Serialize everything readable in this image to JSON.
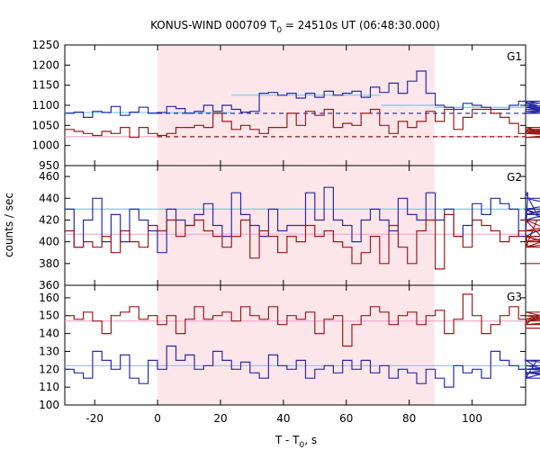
{
  "chart_data": {
    "type": "line",
    "title_prefix": "KONUS-WIND 000709 T",
    "title_sub": "0",
    "title_suffix": " = 24510s UT (06:48:30.000)",
    "xlabel_prefix": "T - T",
    "xlabel_sub": "0",
    "xlabel_suffix": ", s",
    "ylabel": "counts / sec",
    "xlim": [
      -29.5,
      117
    ],
    "x_ticks": [
      -20,
      0,
      20,
      40,
      60,
      80,
      100
    ],
    "highlight_interval": [
      0,
      88
    ],
    "colors": {
      "blue": "#2a2aa8",
      "red": "#9a1a1a",
      "light_blue": "#6ed0f0",
      "pink": "#f0a6cc",
      "dashed_blue": "#1f1f9a",
      "dashed_red": "#8a1010",
      "highlight": "#fde6ea"
    },
    "bin_width": 2.944,
    "x_start": -29.5,
    "panels": [
      {
        "label": "G1",
        "ylim": [
          950,
          1250
        ],
        "y_ticks": [
          950,
          1000,
          1050,
          1100,
          1150,
          1200,
          1250
        ],
        "series": [
          {
            "color_key": "blue",
            "values": [
              1080,
              1083,
              1070,
              1085,
              1082,
              1097,
              1075,
              1083,
              1095,
              1080,
              1082,
              1097,
              1092,
              1080,
              1085,
              1100,
              1085,
              1100,
              1090,
              1083,
              1085,
              1130,
              1132,
              1125,
              1130,
              1118,
              1130,
              1120,
              1135,
              1125,
              1130,
              1135,
              1120,
              1145,
              1132,
              1155,
              1130,
              1160,
              1185,
              1130,
              1100,
              1095,
              1090,
              1105,
              1100,
              1095,
              1090,
              1090,
              1100,
              1110,
              1105,
              1100,
              1090,
              1095,
              1085,
              1095,
              1110,
              1085,
              1080,
              1105
            ]
          },
          {
            "color_key": "red",
            "values": [
              1040,
              1035,
              1030,
              1025,
              1035,
              1030,
              1045,
              1020,
              1045,
              1030,
              1025,
              1030,
              1045,
              1045,
              1050,
              1045,
              1080,
              1060,
              1040,
              1050,
              1040,
              1030,
              1045,
              1045,
              1080,
              1050,
              1085,
              1075,
              1090,
              1045,
              1055,
              1050,
              1080,
              1090,
              1050,
              1030,
              1060,
              1045,
              1060,
              1085,
              1060,
              1090,
              1040,
              1070,
              1090,
              1090,
              1080,
              1070,
              1055,
              1030,
              1040,
              1035,
              1030,
              1045,
              1020,
              1030,
              1040,
              1030,
              1020,
              1035
            ]
          }
        ],
        "levels": [
          {
            "color_key": "light_blue",
            "style": "solid",
            "value": 1082,
            "from": -29.5,
            "to": 23.5
          },
          {
            "color_key": "light_blue",
            "style": "solid",
            "value": 1125,
            "from": 23.5,
            "to": 71
          },
          {
            "color_key": "light_blue",
            "style": "solid",
            "value": 1100,
            "from": 71,
            "to": 88
          },
          {
            "color_key": "light_blue",
            "style": "solid",
            "value": 1095,
            "from": 88,
            "to": 117
          },
          {
            "color_key": "pink",
            "style": "solid",
            "value": 1022,
            "from": -29.5,
            "to": 0
          },
          {
            "color_key": "pink",
            "style": "solid",
            "value": 1022,
            "from": 88,
            "to": 117
          },
          {
            "color_key": "dashed_blue",
            "style": "dashed",
            "value": 1080,
            "from": 0,
            "to": 117
          },
          {
            "color_key": "dashed_red",
            "style": "dashed",
            "value": 1022,
            "from": 0,
            "to": 117
          }
        ]
      },
      {
        "label": "G2",
        "ylim": [
          360,
          470
        ],
        "y_ticks": [
          360,
          380,
          400,
          420,
          440,
          460
        ],
        "series": [
          {
            "color_key": "blue",
            "values": [
              430,
              395,
              420,
              440,
              400,
              425,
              400,
              430,
              420,
              410,
              390,
              430,
              420,
              415,
              425,
              435,
              415,
              405,
              445,
              425,
              415,
              405,
              430,
              410,
              415,
              415,
              445,
              420,
              450,
              420,
              415,
              400,
              420,
              430,
              420,
              410,
              440,
              425,
              420,
              445,
              420,
              430,
              405,
              415,
              435,
              425,
              440,
              435,
              430,
              405,
              445,
              425,
              430,
              420,
              430,
              405,
              430,
              440,
              425,
              440
            ]
          },
          {
            "color_key": "red",
            "values": [
              410,
              395,
              400,
              395,
              405,
              390,
              410,
              400,
              395,
              415,
              410,
              420,
              405,
              415,
              420,
              410,
              405,
              395,
              405,
              420,
              385,
              410,
              405,
              390,
              405,
              400,
              415,
              405,
              410,
              400,
              395,
              380,
              390,
              405,
              380,
              415,
              395,
              380,
              410,
              420,
              375,
              425,
              405,
              395,
              420,
              415,
              410,
              400,
              405,
              410,
              395,
              420,
              400,
              405,
              395,
              410,
              420,
              395,
              405,
              380
            ]
          }
        ],
        "levels": [
          {
            "color_key": "light_blue",
            "style": "solid",
            "value": 430,
            "from": -29.5,
            "to": 117
          },
          {
            "color_key": "pink",
            "style": "solid",
            "value": 407,
            "from": -29.5,
            "to": 117
          }
        ]
      },
      {
        "label": "G3",
        "ylim": [
          100,
          167
        ],
        "y_ticks": [
          100,
          110,
          120,
          130,
          140,
          150,
          160
        ],
        "series": [
          {
            "color_key": "blue",
            "values": [
              120,
              118,
              115,
              130,
              125,
              120,
              128,
              115,
              112,
              125,
              120,
              133,
              125,
              128,
              120,
              122,
              130,
              125,
              120,
              124,
              118,
              115,
              128,
              122,
              120,
              125,
              115,
              120,
              122,
              118,
              125,
              120,
              125,
              118,
              122,
              115,
              120,
              118,
              112,
              120,
              115,
              110,
              122,
              118,
              120,
              115,
              130,
              125,
              122,
              120,
              115,
              125,
              118,
              120,
              122,
              118,
              115,
              125,
              120,
              118
            ]
          },
          {
            "color_key": "red",
            "values": [
              150,
              148,
              152,
              147,
              140,
              150,
              152,
              155,
              148,
              150,
              145,
              150,
              140,
              148,
              155,
              148,
              150,
              152,
              147,
              155,
              150,
              148,
              155,
              145,
              150,
              148,
              152,
              140,
              148,
              150,
              133,
              145,
              150,
              155,
              152,
              145,
              150,
              152,
              145,
              150,
              153,
              140,
              148,
              162,
              150,
              140,
              145,
              150,
              155,
              148,
              145,
              150,
              148,
              152,
              147,
              150,
              145,
              148,
              150,
              143
            ]
          }
        ],
        "levels": [
          {
            "color_key": "light_blue",
            "style": "solid",
            "value": 122,
            "from": -29.5,
            "to": 117
          },
          {
            "color_key": "pink",
            "style": "solid",
            "value": 147,
            "from": -29.5,
            "to": 117
          }
        ]
      }
    ]
  }
}
